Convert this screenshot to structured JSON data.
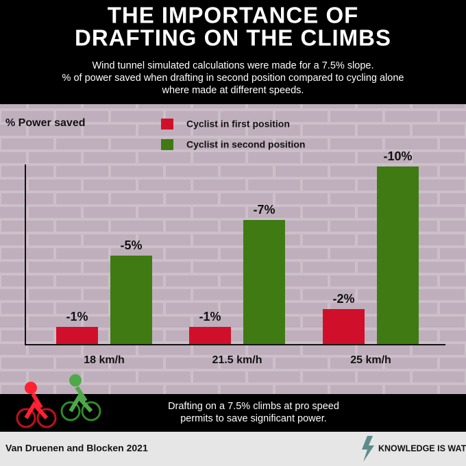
{
  "chart_data": {
    "type": "bar",
    "title": [
      "THE IMPORTANCE OF",
      "DRAFTING ON THE CLIMBS"
    ],
    "subtitle": [
      "Wind tunnel simulated calculations were made for a 7.5% slope.",
      "% of power saved when drafting in second position compared to cycling alone",
      "where made at different speeds."
    ],
    "y_label": "% Power saved",
    "categories": [
      "18 km/h",
      "21.5 km/h",
      "25 km/h"
    ],
    "series": [
      {
        "name": "Cyclist in first position",
        "color": "#d0102a",
        "values": [
          -1,
          -1,
          -2
        ],
        "value_labels": [
          "-1%",
          "-1%",
          "-2%"
        ]
      },
      {
        "name": "Cyclist in second position",
        "color": "#3f7a12",
        "values": [
          -5,
          -7,
          -10
        ],
        "value_labels": [
          "-5%",
          "-7%",
          "-10%"
        ]
      }
    ],
    "ylim": [
      0,
      -10
    ],
    "note": [
      "Drafting on a 7.5% climbs at pro speed",
      "permits to save significant power."
    ],
    "source": "Van Druenen and Blocken 2021",
    "brand": "KNOWLEDGE IS WATT"
  }
}
